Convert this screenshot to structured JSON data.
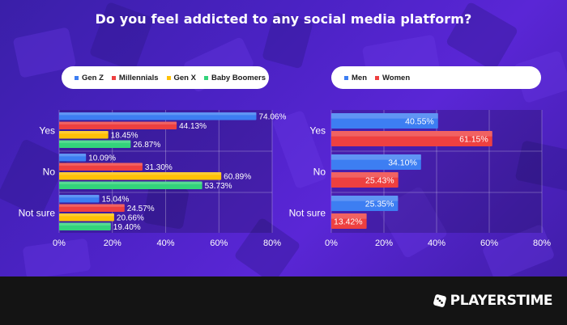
{
  "title": "Do you feel addicted to any social media platform?",
  "brand": {
    "name": "PLAYERSTIME",
    "name_part1": "PLAYERS",
    "name_part2": "TIME"
  },
  "colors": {
    "gen_z": "#3d7ef2",
    "millennials": "#ee4040",
    "gen_x": "#ffc107",
    "baby_boomers": "#33d37b",
    "men": "#3d7ef2",
    "women": "#ee4040"
  },
  "chart_data": [
    {
      "type": "bar",
      "orientation": "horizontal",
      "categories": [
        "Yes",
        "No",
        "Not sure"
      ],
      "series": [
        {
          "name": "Gen Z",
          "color": "#3d7ef2",
          "values": [
            74.06,
            10.09,
            15.04
          ]
        },
        {
          "name": "Millennials",
          "color": "#ee4040",
          "values": [
            44.13,
            31.3,
            24.57
          ]
        },
        {
          "name": "Gen X",
          "color": "#ffc107",
          "values": [
            18.45,
            60.89,
            20.66
          ]
        },
        {
          "name": "Baby Boomers",
          "color": "#33d37b",
          "values": [
            26.87,
            53.73,
            19.4
          ]
        }
      ],
      "xlim": [
        0,
        80
      ],
      "xticks": [
        "0%",
        "20%",
        "40%",
        "60%",
        "80%"
      ],
      "grid": true,
      "legend": "top"
    },
    {
      "type": "bar",
      "orientation": "horizontal",
      "categories": [
        "Yes",
        "No",
        "Not sure"
      ],
      "series": [
        {
          "name": "Men",
          "color": "#3d7ef2",
          "values": [
            40.55,
            34.1,
            25.35
          ]
        },
        {
          "name": "Women",
          "color": "#ee4040",
          "values": [
            61.15,
            25.43,
            13.42
          ]
        }
      ],
      "xlim": [
        0,
        80
      ],
      "xticks": [
        "0%",
        "20%",
        "40%",
        "60%",
        "80%"
      ],
      "grid": true,
      "legend": "top"
    }
  ]
}
